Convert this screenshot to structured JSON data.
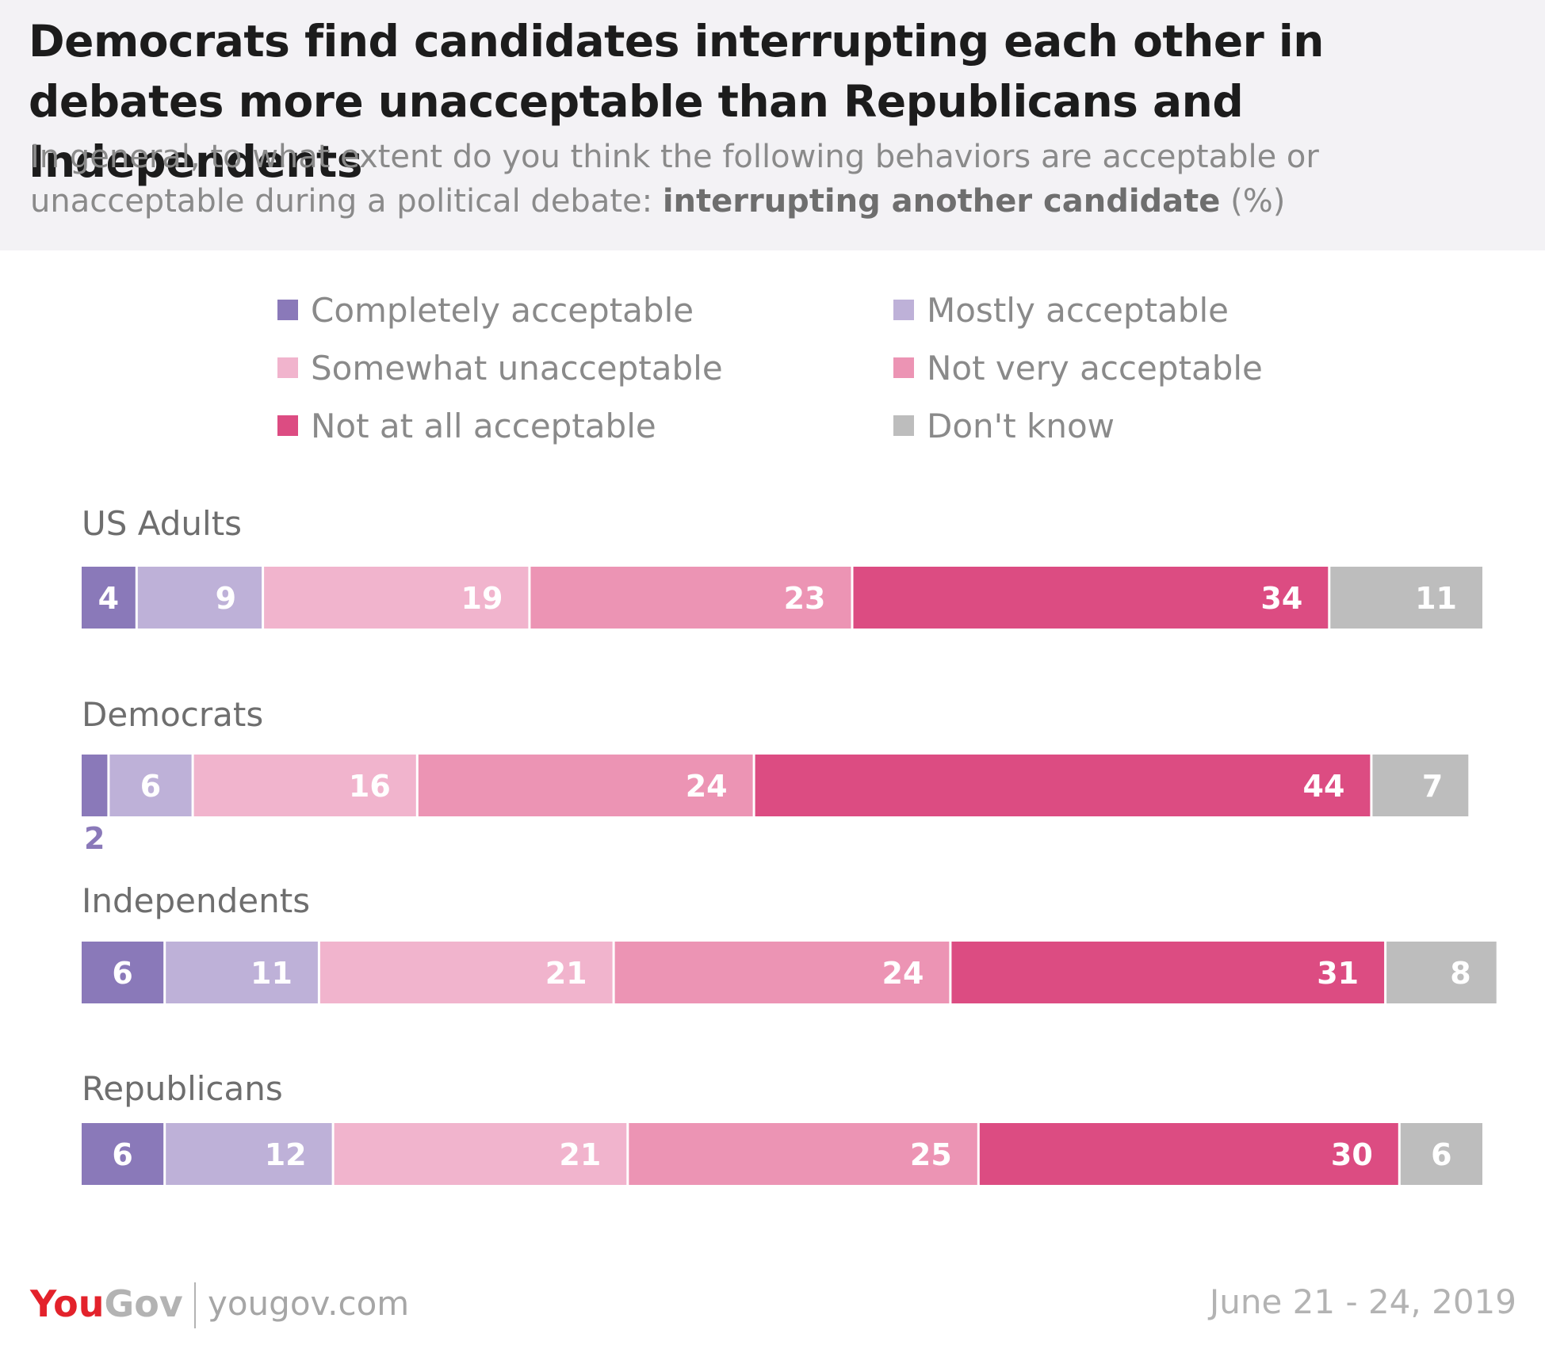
{
  "title": "Democrats find candidates interrupting each other in debates more unacceptable than Republicans and Independents",
  "subtitle": {
    "text": "In general, to what extent do you think the following behaviors are acceptable or unacceptable during a political debate: ",
    "emphasis": "interrupting another candidate",
    "suffix": " (%)"
  },
  "legend": [
    {
      "label": "Completely acceptable",
      "color": "#8a79b9"
    },
    {
      "label": "Mostly acceptable",
      "color": "#beb1d8"
    },
    {
      "label": "Somewhat unacceptable",
      "color": "#f1b4cd"
    },
    {
      "label": "Not very acceptable",
      "color": "#ec94b4"
    },
    {
      "label": "Not at all acceptable",
      "color": "#dc4c82"
    },
    {
      "label": "Don't know",
      "color": "#bdbdbd"
    }
  ],
  "chart_data": {
    "type": "bar",
    "orientation": "horizontal",
    "stacked": true,
    "categories": [
      "US Adults",
      "Democrats",
      "Independents",
      "Republicans"
    ],
    "series": [
      {
        "name": "Completely acceptable",
        "values": [
          4,
          2,
          6,
          6
        ]
      },
      {
        "name": "Mostly acceptable",
        "values": [
          9,
          6,
          11,
          12
        ]
      },
      {
        "name": "Somewhat unacceptable",
        "values": [
          19,
          16,
          21,
          21
        ]
      },
      {
        "name": "Not very acceptable",
        "values": [
          23,
          24,
          24,
          25
        ]
      },
      {
        "name": "Not at all acceptable",
        "values": [
          34,
          44,
          31,
          30
        ]
      },
      {
        "name": "Don't know",
        "values": [
          11,
          7,
          8,
          6
        ]
      }
    ],
    "xlim": [
      0,
      100
    ],
    "legend_position": "top",
    "grid": false
  },
  "footer": {
    "logo_you": "You",
    "logo_gov": "Gov",
    "url": "yougov.com",
    "date": "June 21 - 24, 2019"
  }
}
